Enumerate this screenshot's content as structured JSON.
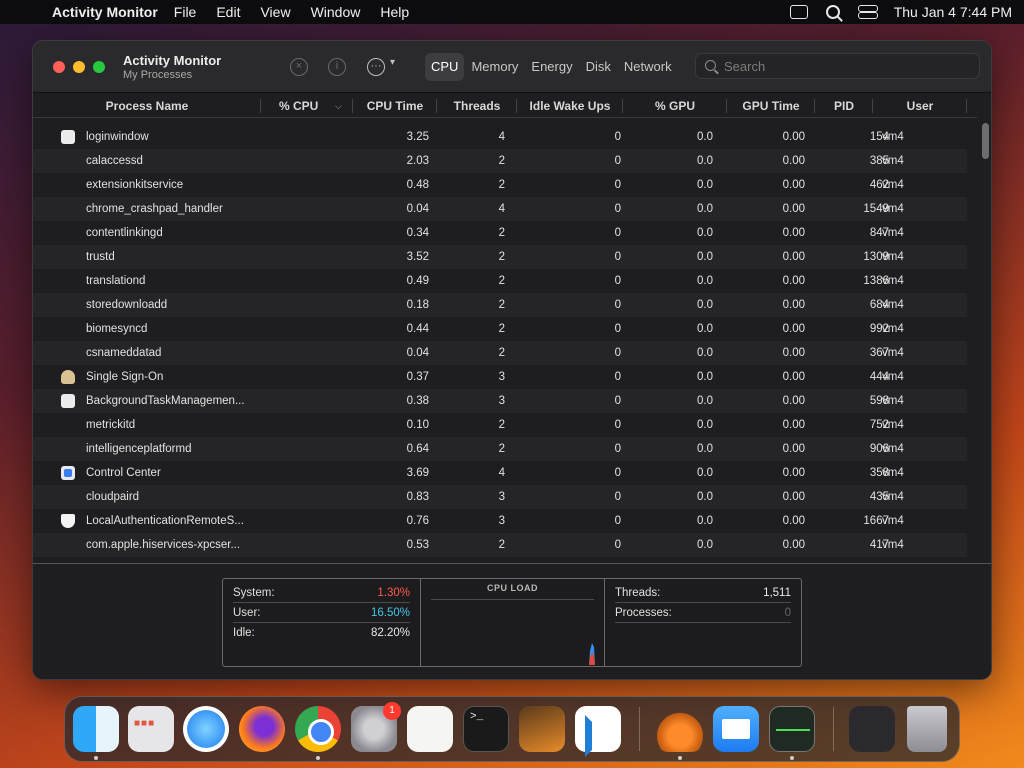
{
  "menubar": {
    "app_name": "Activity Monitor",
    "menus": [
      "File",
      "Edit",
      "View",
      "Window",
      "Help"
    ],
    "clock": "Thu Jan 4  7:44 PM"
  },
  "window": {
    "title": "Activity Monitor",
    "subtitle": "My Processes",
    "tabs": [
      {
        "label": "CPU",
        "active": true
      },
      {
        "label": "Memory",
        "active": false
      },
      {
        "label": "Energy",
        "active": false
      },
      {
        "label": "Disk",
        "active": false
      },
      {
        "label": "Network",
        "active": false
      }
    ],
    "search_placeholder": "Search"
  },
  "table": {
    "columns": [
      "Process Name",
      "% CPU",
      "CPU Time",
      "Threads",
      "Idle Wake Ups",
      "% GPU",
      "GPU Time",
      "PID",
      "User"
    ],
    "sort_column": "% CPU",
    "rows": [
      {
        "icon": "white-square",
        "name": "loginwindow",
        "cpu": "3.25",
        "threads": "4",
        "idle": "0",
        "gpu": "0.0",
        "gpu_time": "0.00",
        "pid": "154",
        "user": "vm4"
      },
      {
        "icon": "",
        "name": "calaccessd",
        "cpu": "2.03",
        "threads": "2",
        "idle": "0",
        "gpu": "0.0",
        "gpu_time": "0.00",
        "pid": "385",
        "user": "vm4"
      },
      {
        "icon": "",
        "name": "extensionkitservice",
        "cpu": "0.48",
        "threads": "2",
        "idle": "0",
        "gpu": "0.0",
        "gpu_time": "0.00",
        "pid": "462",
        "user": "vm4"
      },
      {
        "icon": "",
        "name": "chrome_crashpad_handler",
        "cpu": "0.04",
        "threads": "4",
        "idle": "0",
        "gpu": "0.0",
        "gpu_time": "0.00",
        "pid": "1549",
        "user": "vm4"
      },
      {
        "icon": "",
        "name": "contentlinkingd",
        "cpu": "0.34",
        "threads": "2",
        "idle": "0",
        "gpu": "0.0",
        "gpu_time": "0.00",
        "pid": "847",
        "user": "vm4"
      },
      {
        "icon": "",
        "name": "trustd",
        "cpu": "3.52",
        "threads": "2",
        "idle": "0",
        "gpu": "0.0",
        "gpu_time": "0.00",
        "pid": "1309",
        "user": "vm4"
      },
      {
        "icon": "",
        "name": "translationd",
        "cpu": "0.49",
        "threads": "2",
        "idle": "0",
        "gpu": "0.0",
        "gpu_time": "0.00",
        "pid": "1386",
        "user": "vm4"
      },
      {
        "icon": "",
        "name": "storedownloadd",
        "cpu": "0.18",
        "threads": "2",
        "idle": "0",
        "gpu": "0.0",
        "gpu_time": "0.00",
        "pid": "684",
        "user": "vm4"
      },
      {
        "icon": "",
        "name": "biomesyncd",
        "cpu": "0.44",
        "threads": "2",
        "idle": "0",
        "gpu": "0.0",
        "gpu_time": "0.00",
        "pid": "992",
        "user": "vm4"
      },
      {
        "icon": "",
        "name": "csnameddatad",
        "cpu": "0.04",
        "threads": "2",
        "idle": "0",
        "gpu": "0.0",
        "gpu_time": "0.00",
        "pid": "367",
        "user": "vm4"
      },
      {
        "icon": "sso",
        "name": "Single Sign-On",
        "cpu": "0.37",
        "threads": "3",
        "idle": "0",
        "gpu": "0.0",
        "gpu_time": "0.00",
        "pid": "444",
        "user": "vm4"
      },
      {
        "icon": "white-square",
        "name": "BackgroundTaskManagemen...",
        "cpu": "0.38",
        "threads": "3",
        "idle": "0",
        "gpu": "0.0",
        "gpu_time": "0.00",
        "pid": "598",
        "user": "vm4"
      },
      {
        "icon": "",
        "name": "metrickitd",
        "cpu": "0.10",
        "threads": "2",
        "idle": "0",
        "gpu": "0.0",
        "gpu_time": "0.00",
        "pid": "752",
        "user": "vm4"
      },
      {
        "icon": "",
        "name": "intelligenceplatformd",
        "cpu": "0.64",
        "threads": "2",
        "idle": "0",
        "gpu": "0.0",
        "gpu_time": "0.00",
        "pid": "906",
        "user": "vm4"
      },
      {
        "icon": "control-center",
        "name": "Control Center",
        "cpu": "3.69",
        "threads": "4",
        "idle": "0",
        "gpu": "0.0",
        "gpu_time": "0.00",
        "pid": "358",
        "user": "vm4"
      },
      {
        "icon": "",
        "name": "cloudpaird",
        "cpu": "0.83",
        "threads": "3",
        "idle": "0",
        "gpu": "0.0",
        "gpu_time": "0.00",
        "pid": "435",
        "user": "vm4"
      },
      {
        "icon": "shield",
        "name": "LocalAuthenticationRemoteS...",
        "cpu": "0.76",
        "threads": "3",
        "idle": "0",
        "gpu": "0.0",
        "gpu_time": "0.00",
        "pid": "1667",
        "user": "vm4"
      },
      {
        "icon": "",
        "name": "com.apple.hiservices-xpcser...",
        "cpu": "0.53",
        "threads": "2",
        "idle": "0",
        "gpu": "0.0",
        "gpu_time": "0.00",
        "pid": "417",
        "user": "vm4"
      }
    ]
  },
  "stats": {
    "system_label": "System:",
    "system_value": "1.30%",
    "user_label": "User:",
    "user_value": "16.50%",
    "idle_label": "Idle:",
    "idle_value": "82.20%",
    "cpu_load_title": "CPU LOAD",
    "threads_label": "Threads:",
    "threads_value": "1,511",
    "processes_label": "Processes:",
    "processes_value": "0"
  },
  "dock": {
    "items": [
      "Finder",
      "Launchpad",
      "Safari",
      "Firefox",
      "Google Chrome",
      "System Settings",
      "TextEdit",
      "Terminal",
      "GarageBand",
      "Visual Studio Code",
      "Flask",
      "Mail",
      "Activity Monitor",
      "Downloads",
      "Trash"
    ],
    "settings_badge": "1"
  },
  "colors": {
    "system_value": "#ff5a4e",
    "user_value": "#46c5e8",
    "active_tab": "#3d3d40"
  }
}
